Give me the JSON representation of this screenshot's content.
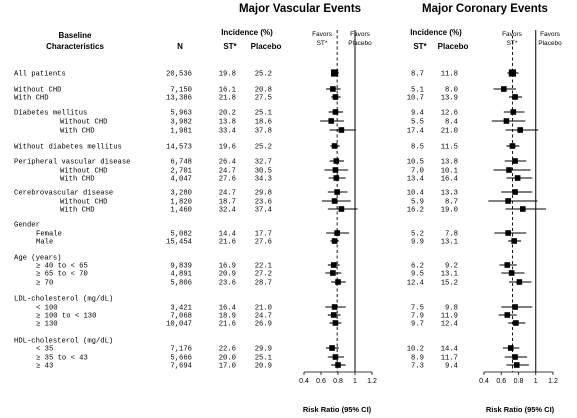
{
  "headers": {
    "baseline": "Baseline",
    "characteristics": "Characteristics",
    "n": "N",
    "panel_titles": [
      "Major Vascular Events",
      "Major Coronary Events"
    ],
    "incidence": "Incidence (%)",
    "st": "ST*",
    "placebo": "Placebo",
    "favors": "Favors",
    "favors_st": "ST*",
    "favors_placebo": "Placebo"
  },
  "x_axis": {
    "ticks": [
      "0.4",
      "0.6",
      "0.8",
      "1",
      "1.2"
    ],
    "label": "Risk Ratio (95% CI)"
  },
  "chart_data": [
    {
      "type": "forest",
      "title": "Major Vascular Events",
      "xlabel": "Risk Ratio (95% CI)",
      "xlim": [
        0.4,
        1.2
      ],
      "reference_lines": [
        1.0,
        0.79
      ],
      "rows": [
        {
          "label": "All patients",
          "n": "20,536",
          "st": "19.8",
          "placebo": "25.2",
          "rr": 0.76,
          "lo": 0.72,
          "hi": 0.81
        },
        {
          "label": "Without CHD",
          "n": "7,150",
          "st": "16.1",
          "placebo": "20.8",
          "rr": 0.74,
          "lo": 0.66,
          "hi": 0.83
        },
        {
          "label": "With CHD",
          "n": "13,386",
          "st": "21.8",
          "placebo": "27.5",
          "rr": 0.77,
          "lo": 0.72,
          "hi": 0.83
        },
        {
          "label": "Diabetes mellitus",
          "n": "5,963",
          "st": "20.2",
          "placebo": "25.1",
          "rr": 0.77,
          "lo": 0.69,
          "hi": 0.86
        },
        {
          "label": "Without CHD",
          "n": "3,982",
          "st": "13.8",
          "placebo": "18.6",
          "rr": 0.72,
          "lo": 0.59,
          "hi": 0.87
        },
        {
          "label": "With CHD",
          "n": "1,981",
          "st": "33.4",
          "placebo": "37.8",
          "rr": 0.84,
          "lo": 0.7,
          "hi": 1.01
        },
        {
          "label": "Without diabetes mellitus",
          "n": "14,573",
          "st": "19.6",
          "placebo": "25.2",
          "rr": 0.76,
          "lo": 0.71,
          "hi": 0.82
        },
        {
          "label": "Peripheral vascular disease",
          "n": "6,748",
          "st": "26.4",
          "placebo": "32.7",
          "rr": 0.78,
          "lo": 0.7,
          "hi": 0.87
        },
        {
          "label": "Without CHD",
          "n": "2,701",
          "st": "24.7",
          "placebo": "30.5",
          "rr": 0.77,
          "lo": 0.64,
          "hi": 0.92
        },
        {
          "label": "With CHD",
          "n": "4,047",
          "st": "27.6",
          "placebo": "34.3",
          "rr": 0.78,
          "lo": 0.69,
          "hi": 0.89
        },
        {
          "label": "Cerebrovascular disease",
          "n": "3,280",
          "st": "24.7",
          "placebo": "29.8",
          "rr": 0.79,
          "lo": 0.68,
          "hi": 0.91
        },
        {
          "label": "Without CHD",
          "n": "1,820",
          "st": "18.7",
          "placebo": "23.6",
          "rr": 0.76,
          "lo": 0.61,
          "hi": 0.95
        },
        {
          "label": "With CHD",
          "n": "1,460",
          "st": "32.4",
          "placebo": "37.4",
          "rr": 0.84,
          "lo": 0.68,
          "hi": 1.03
        },
        {
          "label": "Gender",
          "n": "",
          "st": "",
          "placebo": "",
          "rr": null,
          "lo": null,
          "hi": null
        },
        {
          "label": "Female",
          "n": "5,082",
          "st": "14.4",
          "placebo": "17.7",
          "rr": 0.79,
          "lo": 0.66,
          "hi": 0.93
        },
        {
          "label": "Male",
          "n": "15,454",
          "st": "21.6",
          "placebo": "27.6",
          "rr": 0.76,
          "lo": 0.71,
          "hi": 0.81
        },
        {
          "label": "Age (years)",
          "n": "",
          "st": "",
          "placebo": "",
          "rr": null,
          "lo": null,
          "hi": null
        },
        {
          "label": "≥ 40 to < 65",
          "n": "9,839",
          "st": "16.9",
          "placebo": "22.1",
          "rr": 0.75,
          "lo": 0.68,
          "hi": 0.82
        },
        {
          "label": "≥ 65 to < 70",
          "n": "4,891",
          "st": "20.9",
          "placebo": "27.2",
          "rr": 0.74,
          "lo": 0.65,
          "hi": 0.84
        },
        {
          "label": "≥ 70",
          "n": "5,806",
          "st": "23.6",
          "placebo": "28.7",
          "rr": 0.8,
          "lo": 0.72,
          "hi": 0.89
        },
        {
          "label": "LDL-cholesterol (mg/dL)",
          "n": "",
          "st": "",
          "placebo": "",
          "rr": null,
          "lo": null,
          "hi": null
        },
        {
          "label": "< 100",
          "n": "3,421",
          "st": "16.4",
          "placebo": "21.0",
          "rr": 0.76,
          "lo": 0.65,
          "hi": 0.89
        },
        {
          "label": "≥ 100 to < 130",
          "n": "7,068",
          "st": "18.9",
          "placebo": "24.7",
          "rr": 0.75,
          "lo": 0.68,
          "hi": 0.83
        },
        {
          "label": "≥ 130",
          "n": "10,047",
          "st": "21.6",
          "placebo": "26.9",
          "rr": 0.77,
          "lo": 0.7,
          "hi": 0.84
        },
        {
          "label": "HDL-cholesterol (mg/dL)",
          "n": "",
          "st": "",
          "placebo": "",
          "rr": null,
          "lo": null,
          "hi": null
        },
        {
          "label": "< 35",
          "n": "7,176",
          "st": "22.6",
          "placebo": "29.9",
          "rr": 0.73,
          "lo": 0.66,
          "hi": 0.81
        },
        {
          "label": "≥ 35 to < 43",
          "n": "5,666",
          "st": "20.0",
          "placebo": "25.1",
          "rr": 0.77,
          "lo": 0.68,
          "hi": 0.87
        },
        {
          "label": "≥ 43",
          "n": "7,694",
          "st": "17.0",
          "placebo": "20.9",
          "rr": 0.8,
          "lo": 0.72,
          "hi": 0.89
        }
      ]
    },
    {
      "type": "forest",
      "title": "Major Coronary Events",
      "xlabel": "Risk Ratio (95% CI)",
      "xlim": [
        0.4,
        1.2
      ],
      "reference_lines": [
        1.0,
        0.73
      ],
      "rows": [
        {
          "label": "All patients",
          "st": "8.7",
          "placebo": "11.8",
          "rr": 0.73,
          "lo": 0.67,
          "hi": 0.8
        },
        {
          "label": "Without CHD",
          "st": "5.1",
          "placebo": "8.0",
          "rr": 0.63,
          "lo": 0.51,
          "hi": 0.77
        },
        {
          "label": "With CHD",
          "st": "10.7",
          "placebo": "13.9",
          "rr": 0.76,
          "lo": 0.69,
          "hi": 0.84
        },
        {
          "label": "Diabetes mellitus",
          "st": "9.4",
          "placebo": "12.6",
          "rr": 0.74,
          "lo": 0.63,
          "hi": 0.87
        },
        {
          "label": "Without CHD",
          "st": "5.5",
          "placebo": "8.4",
          "rr": 0.66,
          "lo": 0.49,
          "hi": 0.88
        },
        {
          "label": "With CHD",
          "st": "17.4",
          "placebo": "21.0",
          "rr": 0.82,
          "lo": 0.65,
          "hi": 1.03
        },
        {
          "label": "Without diabetes mellitus",
          "st": "8.5",
          "placebo": "11.5",
          "rr": 0.73,
          "lo": 0.66,
          "hi": 0.81
        },
        {
          "label": "Peripheral vascular disease",
          "st": "10.5",
          "placebo": "13.8",
          "rr": 0.76,
          "lo": 0.64,
          "hi": 0.89
        },
        {
          "label": "Without CHD",
          "st": "7.0",
          "placebo": "10.1",
          "rr": 0.69,
          "lo": 0.51,
          "hi": 0.94
        },
        {
          "label": "With CHD",
          "st": "13.4",
          "placebo": "16.4",
          "rr": 0.79,
          "lo": 0.66,
          "hi": 0.96
        },
        {
          "label": "Cerebrovascular disease",
          "st": "10.4",
          "placebo": "13.3",
          "rr": 0.76,
          "lo": 0.6,
          "hi": 0.96
        },
        {
          "label": "Without CHD",
          "st": "5.9",
          "placebo": "8.7",
          "rr": 0.68,
          "lo": 0.45,
          "hi": 1.02
        },
        {
          "label": "With CHD",
          "st": "16.2",
          "placebo": "19.0",
          "rr": 0.85,
          "lo": 0.65,
          "hi": 1.12
        },
        {
          "label": "Gender",
          "st": "",
          "placebo": "",
          "rr": null,
          "lo": null,
          "hi": null
        },
        {
          "label": "Female",
          "st": "5.2",
          "placebo": "7.8",
          "rr": 0.68,
          "lo": 0.52,
          "hi": 0.89
        },
        {
          "label": "Male",
          "st": "9.9",
          "placebo": "13.1",
          "rr": 0.75,
          "lo": 0.68,
          "hi": 0.83
        },
        {
          "label": "Age (years)",
          "st": "",
          "placebo": "",
          "rr": null,
          "lo": null,
          "hi": null
        },
        {
          "label": "≥ 40 to < 65",
          "st": "6.2",
          "placebo": "9.2",
          "rr": 0.67,
          "lo": 0.58,
          "hi": 0.78
        },
        {
          "label": "≥ 65 to < 70",
          "st": "9.5",
          "placebo": "13.1",
          "rr": 0.72,
          "lo": 0.6,
          "hi": 0.87
        },
        {
          "label": "≥ 70",
          "st": "12.4",
          "placebo": "15.2",
          "rr": 0.81,
          "lo": 0.69,
          "hi": 0.95
        },
        {
          "label": "LDL-cholesterol (mg/dL)",
          "st": "",
          "placebo": "",
          "rr": null,
          "lo": null,
          "hi": null
        },
        {
          "label": "< 100",
          "st": "7.5",
          "placebo": "9.8",
          "rr": 0.76,
          "lo": 0.6,
          "hi": 0.96
        },
        {
          "label": "≥ 100 to < 130",
          "st": "7.9",
          "placebo": "11.9",
          "rr": 0.67,
          "lo": 0.57,
          "hi": 0.78
        },
        {
          "label": "≥ 130",
          "st": "9.7",
          "placebo": "12.4",
          "rr": 0.77,
          "lo": 0.68,
          "hi": 0.88
        },
        {
          "label": "HDL-cholesterol (mg/dL)",
          "st": "",
          "placebo": "",
          "rr": null,
          "lo": null,
          "hi": null
        },
        {
          "label": "< 35",
          "st": "10.2",
          "placebo": "14.4",
          "rr": 0.71,
          "lo": 0.62,
          "hi": 0.81
        },
        {
          "label": "≥ 35 to < 43",
          "st": "8.9",
          "placebo": "11.7",
          "rr": 0.76,
          "lo": 0.64,
          "hi": 0.9
        },
        {
          "label": "≥ 43",
          "st": "7.3",
          "placebo": "9.4",
          "rr": 0.78,
          "lo": 0.66,
          "hi": 0.92
        }
      ]
    }
  ]
}
